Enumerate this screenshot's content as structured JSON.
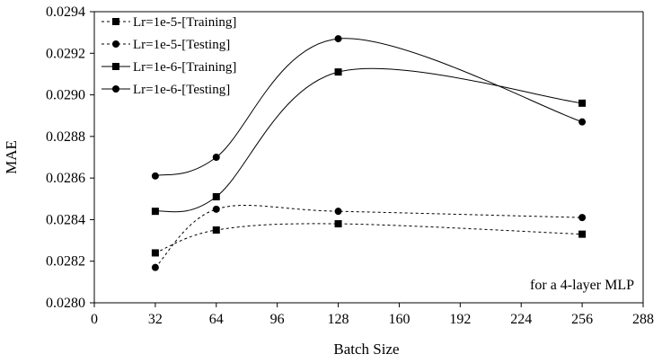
{
  "chart_data": {
    "type": "line",
    "xlabel": "Batch Size",
    "ylabel": "MAE",
    "xlim": [
      0,
      288
    ],
    "ylim": [
      0.028,
      0.0294
    ],
    "xticks": [
      0,
      32,
      64,
      96,
      128,
      160,
      192,
      224,
      256,
      288
    ],
    "xtick_labels": [
      "0",
      "32",
      "64",
      "96",
      "128",
      "160",
      "192",
      "224",
      "256",
      "288"
    ],
    "yticks": [
      0.028,
      0.0282,
      0.0284,
      0.0286,
      0.0288,
      0.029,
      0.0292,
      0.0294
    ],
    "ytick_labels": [
      "0.0280",
      "0.0282",
      "0.0284",
      "0.0286",
      "0.0288",
      "0.0290",
      "0.0292",
      "0.0294"
    ],
    "grid": false,
    "legend_position": "top-left",
    "annotation": "for a 4-layer MLP",
    "x": [
      32,
      64,
      128,
      256
    ],
    "series": [
      {
        "name": "Lr=1e-5-[Training]",
        "values": [
          0.02824,
          0.02835,
          0.02838,
          0.02833
        ],
        "line": "dashed",
        "marker": "square"
      },
      {
        "name": "Lr=1e-5-[Testing]",
        "values": [
          0.02817,
          0.02845,
          0.02844,
          0.02841
        ],
        "line": "dashed",
        "marker": "circle"
      },
      {
        "name": "Lr=1e-6-[Training]",
        "values": [
          0.02844,
          0.02851,
          0.02911,
          0.02896
        ],
        "line": "solid",
        "marker": "square"
      },
      {
        "name": "Lr=1e-6-[Testing]",
        "values": [
          0.02861,
          0.0287,
          0.02927,
          0.02887
        ],
        "line": "solid",
        "marker": "circle"
      }
    ]
  }
}
